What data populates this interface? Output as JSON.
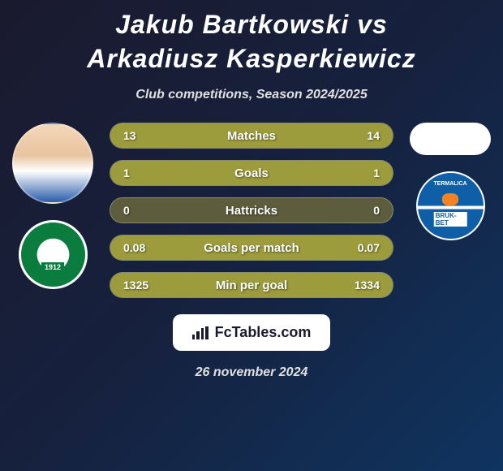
{
  "title": "Jakub Bartkowski vs Arkadiusz Kasperkiewicz",
  "subtitle": "Club competitions, Season 2024/2025",
  "date": "26 november 2024",
  "footer_brand": "FcTables.com",
  "colors": {
    "background_gradient": [
      "#1a1a2e",
      "#16213e",
      "#0f3460"
    ],
    "title_color": "#ffffff",
    "subtitle_color": "#e0e0e0",
    "stat_fill": "#9c9c3d",
    "stat_bg": "#5d5d3d",
    "stat_text": "#ffffff"
  },
  "player_left": {
    "name": "Jakub Bartkowski",
    "club": "Warta Poznań",
    "club_founded": "1912",
    "club_color": "#0a7d3e"
  },
  "player_right": {
    "name": "Arkadiusz Kasperkiewicz",
    "club": "Termalica Bruk-Bet",
    "club_color": "#0e5fa8"
  },
  "stats": [
    {
      "label": "Matches",
      "left_value": "13",
      "right_value": "14",
      "left_fill_pct": 48,
      "right_fill_pct": 52
    },
    {
      "label": "Goals",
      "left_value": "1",
      "right_value": "1",
      "left_fill_pct": 50,
      "right_fill_pct": 50
    },
    {
      "label": "Hattricks",
      "left_value": "0",
      "right_value": "0",
      "left_fill_pct": 0,
      "right_fill_pct": 0
    },
    {
      "label": "Goals per match",
      "left_value": "0.08",
      "right_value": "0.07",
      "left_fill_pct": 53,
      "right_fill_pct": 47
    },
    {
      "label": "Min per goal",
      "left_value": "1325",
      "right_value": "1334",
      "left_fill_pct": 49,
      "right_fill_pct": 51
    }
  ]
}
